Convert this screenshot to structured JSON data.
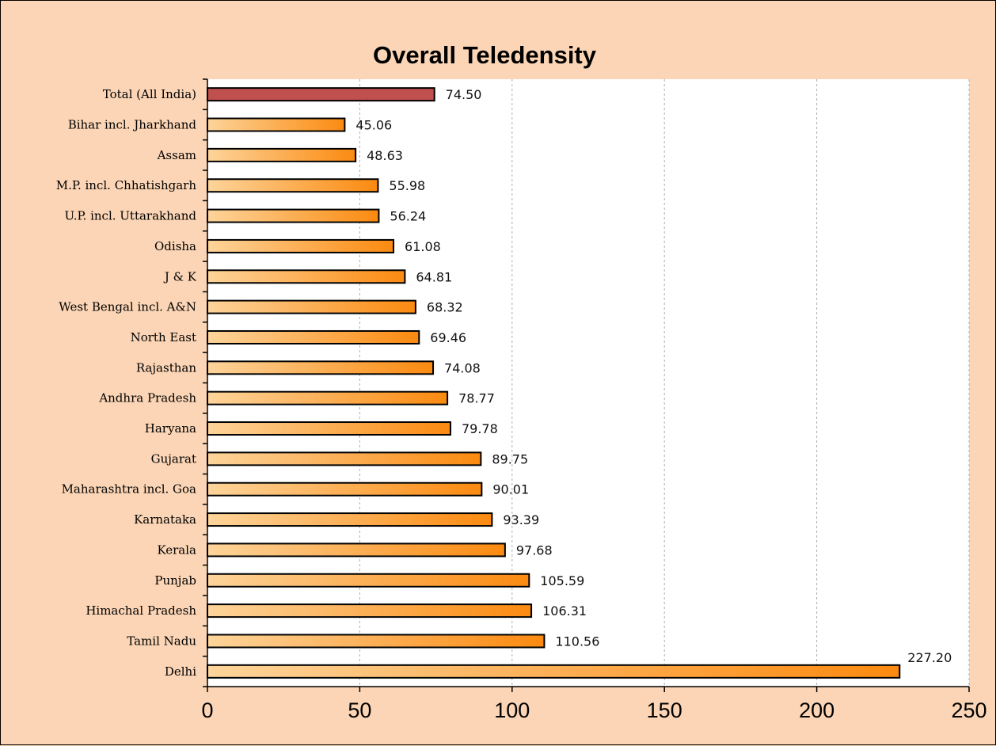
{
  "chart_data": {
    "type": "bar",
    "orientation": "horizontal",
    "title": "Overall Teledensity",
    "categories": [
      "Total (All India)",
      "Bihar incl. Jharkhand",
      "Assam",
      "M.P. incl. Chhatishgarh",
      "U.P. incl. Uttarakhand",
      "Odisha",
      "J & K",
      "West Bengal incl. A&N",
      "North East",
      "Rajasthan",
      "Andhra Pradesh",
      "Haryana",
      "Gujarat",
      "Maharashtra incl. Goa",
      "Karnataka",
      "Kerala",
      "Punjab",
      "Himachal Pradesh",
      "Tamil Nadu",
      "Delhi"
    ],
    "values": [
      74.5,
      45.06,
      48.63,
      55.98,
      56.24,
      61.08,
      64.81,
      68.32,
      69.46,
      74.08,
      78.77,
      79.78,
      89.75,
      90.01,
      93.39,
      97.68,
      105.59,
      106.31,
      110.56,
      227.2
    ],
    "value_labels": [
      "74.50",
      "45.06",
      "48.63",
      "55.98",
      "56.24",
      "61.08",
      "64.81",
      "68.32",
      "69.46",
      "74.08",
      "78.77",
      "79.78",
      "89.75",
      "90.01",
      "93.39",
      "97.68",
      "105.59",
      "106.31",
      "110.56",
      "227.20"
    ],
    "highlight_index": 0,
    "xlim": [
      0,
      250
    ],
    "x_ticks": [
      0,
      50,
      100,
      150,
      200,
      250
    ],
    "x_tick_labels": [
      "0",
      "50",
      "100",
      "150",
      "200",
      "250"
    ],
    "grid": "vertical dashed",
    "xlabel": "",
    "ylabel": "",
    "colors": {
      "background": "#fbd5b5",
      "plot_area": "#ffffff",
      "bar_gradient_start": "#fdd49a",
      "bar_gradient_end": "#fb8a10",
      "highlight_bar": "#c0504d",
      "bar_border": "#000000",
      "grid": "#b0b0b0"
    }
  }
}
